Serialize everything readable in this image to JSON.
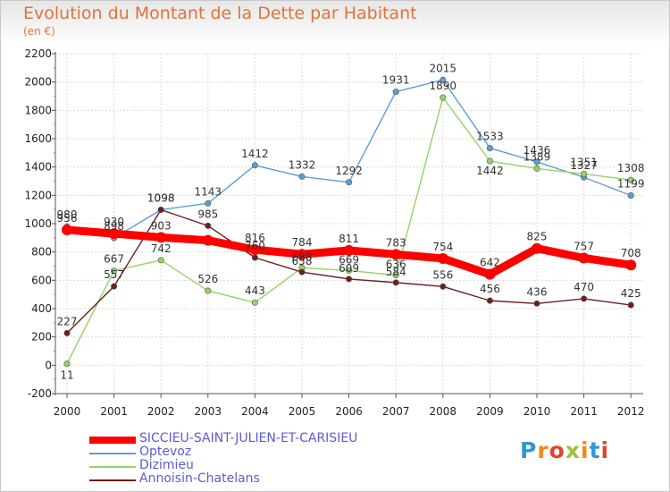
{
  "title": "Evolution du Montant de la Dette par Habitant",
  "subtitle": "(en €)",
  "logo_text": "Proxiti",
  "chart_data": {
    "type": "line",
    "x": [
      "2000",
      "2001",
      "2002",
      "2003",
      "2004",
      "2005",
      "2006",
      "2007",
      "2008",
      "2009",
      "2010",
      "2011",
      "2012"
    ],
    "ylim": [
      -200,
      2200
    ],
    "yticks": [
      -200,
      0,
      200,
      400,
      600,
      800,
      1000,
      1200,
      1400,
      1600,
      1800,
      2000,
      2200
    ],
    "grid": true,
    "legend_position": "bottom-left",
    "series": [
      {
        "name": "Optevoz",
        "color": "#5b9fd6",
        "values": [
          980,
          898,
          1098,
          1143,
          1412,
          1332,
          1292,
          1931,
          2015,
          1533,
          1436,
          1327,
          1199
        ]
      },
      {
        "name": "Dizimieu",
        "color": "#94d366",
        "values": [
          11,
          667,
          742,
          526,
          443,
          688,
          669,
          636,
          1890,
          1442,
          1389,
          1351,
          1308
        ]
      },
      {
        "name": "Annoisin-Chatelans",
        "color": "#6b1f1f",
        "values": [
          227,
          557,
          1098,
          985,
          760,
          658,
          609,
          584,
          556,
          456,
          436,
          470,
          425
        ]
      },
      {
        "name": "SICCIEU-SAINT-JULIEN-ET-CARISIEU",
        "color": "#ff0000",
        "values": [
          956,
          930,
          903,
          882,
          816,
          784,
          811,
          783,
          754,
          642,
          825,
          757,
          708
        ]
      }
    ],
    "labels": {
      "Optevoz": [
        "980",
        "898",
        "1098",
        "1143",
        "1412",
        "1332",
        "1292",
        "1931",
        "2015",
        "1533",
        "1436",
        "1327",
        "1199"
      ],
      "Dizimieu": [
        "11",
        "667",
        "742",
        "526",
        "443",
        "688",
        "669",
        "636",
        "1890",
        "1442",
        "1389",
        "1351",
        "1308"
      ],
      "Annoisin-Chatelans": [
        "227",
        "557",
        "1098",
        "985",
        "760",
        "658",
        "609",
        "584",
        "556",
        "456",
        "436",
        "470",
        "425"
      ],
      "SICCIEU-SAINT-JULIEN-ET-CARISIEU": [
        "956",
        "930",
        "903",
        "",
        "816",
        "784",
        "811",
        "783",
        "754",
        "642",
        "825",
        "757",
        "708"
      ]
    },
    "legend_order": [
      "SICCIEU-SAINT-JULIEN-ET-CARISIEU",
      "Optevoz",
      "Dizimieu",
      "Annoisin-Chatelans"
    ]
  }
}
